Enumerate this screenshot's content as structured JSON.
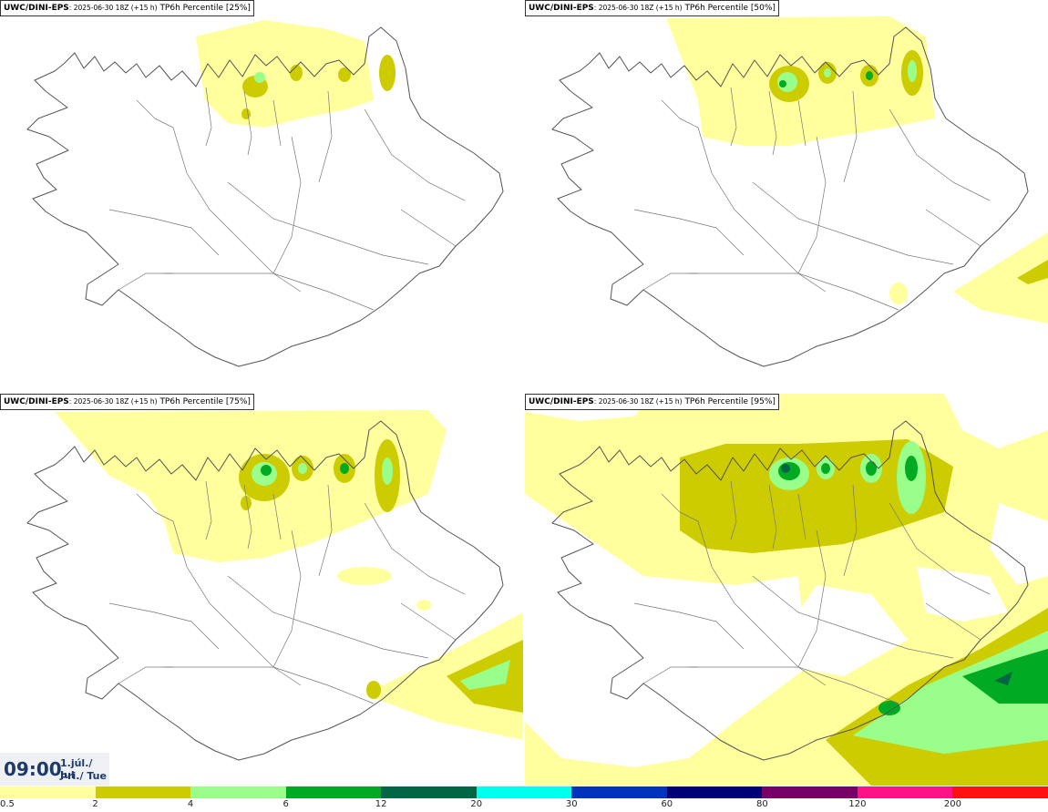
{
  "panels": [
    {
      "id": "p1",
      "model": "UWC/DINI-EPS",
      "run": ": 2025-06-30 18Z (+15 h)",
      "product": "TP6h Percentile [25%]",
      "percentile": 25
    },
    {
      "id": "p2",
      "model": "UWC/DINI-EPS",
      "run": ": 2025-06-30 18Z (+15 h)",
      "product": "TP6h Percentile [50%]",
      "percentile": 50
    },
    {
      "id": "p3",
      "model": "UWC/DINI-EPS",
      "run": ": 2025-06-30 18Z (+15 h)",
      "product": "TP6h Percentile [75%]",
      "percentile": 75
    },
    {
      "id": "p4",
      "model": "UWC/DINI-EPS",
      "run": ": 2025-06-30 18Z (+15 h)",
      "product": "TP6h Percentile [95%]",
      "percentile": 95
    }
  ],
  "validtime": {
    "time": "09:00",
    "date_line1": "1.júl./ Jul",
    "date_line2": "Þri./ Tue"
  },
  "colorbar": {
    "colors": [
      "#ffff9e",
      "#cccc00",
      "#99ff8a",
      "#00aa22",
      "#006644",
      "#00ffee",
      "#0033bb",
      "#000077",
      "#770066",
      "#ff1188",
      "#ff1111"
    ],
    "labels": [
      "0.5",
      "2",
      "4",
      "6",
      "12",
      "20",
      "30",
      "60",
      "80",
      "120",
      "200"
    ]
  },
  "colors": {
    "land_outline": "#555555",
    "time_text": "#1d3a6b"
  }
}
